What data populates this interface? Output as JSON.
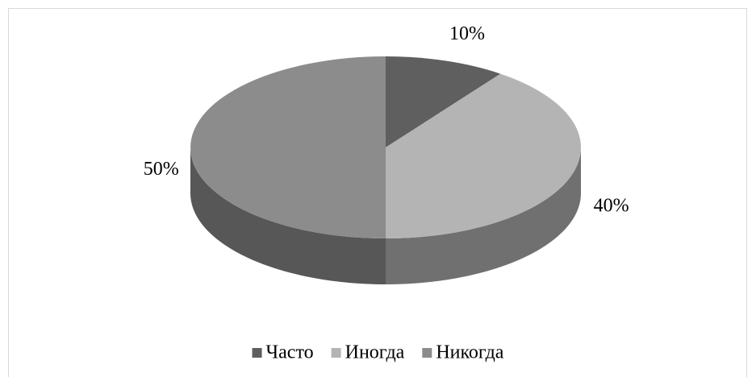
{
  "chart_data": {
    "type": "pie3d",
    "categories": [
      "Часто",
      "Иногда",
      "Никогда"
    ],
    "values": [
      10,
      40,
      50
    ],
    "value_labels": [
      "10%",
      "40%",
      "50%"
    ],
    "colors": [
      "#5f5f5f",
      "#b4b4b4",
      "#8c8c8c"
    ],
    "legend": "bottom"
  }
}
